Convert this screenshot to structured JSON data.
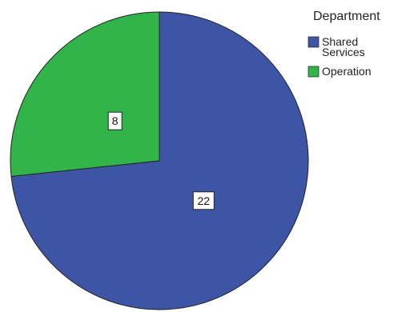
{
  "chart_data": {
    "type": "pie",
    "legend_title": "Department",
    "legend_placement": "top-right",
    "slices": [
      {
        "label": "Shared Services",
        "legend_lines": [
          "Shared",
          "Services"
        ],
        "value": 22,
        "data_label": "22",
        "color": "#3e55a6"
      },
      {
        "label": "Operation",
        "legend_lines": [
          "Operation"
        ],
        "value": 8,
        "data_label": "8",
        "color": "#31b44a"
      }
    ],
    "start_angle_deg": 0,
    "direction": "clockwise",
    "edge_color": "#222222"
  }
}
